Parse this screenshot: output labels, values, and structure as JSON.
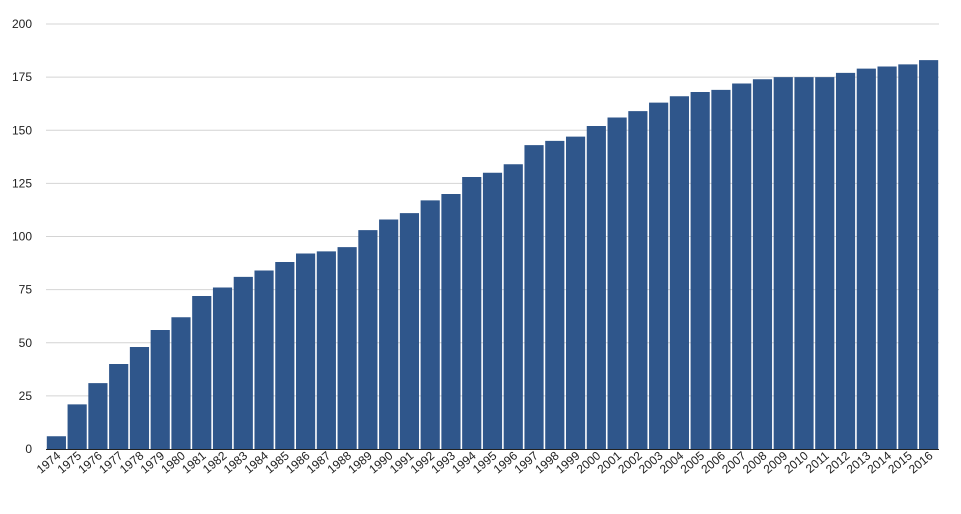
{
  "chart_data": {
    "type": "bar",
    "title": "",
    "xlabel": "",
    "ylabel": "",
    "ylim": [
      0,
      200
    ],
    "yticks": [
      0,
      25,
      50,
      75,
      100,
      125,
      150,
      175,
      200
    ],
    "grid": true,
    "legend": "none",
    "bar_color": "#2f568b",
    "categories": [
      "1974",
      "1975",
      "1976",
      "1977",
      "1978",
      "1979",
      "1980",
      "1981",
      "1982",
      "1983",
      "1984",
      "1985",
      "1986",
      "1987",
      "1988",
      "1989",
      "1990",
      "1991",
      "1992",
      "1993",
      "1994",
      "1995",
      "1996",
      "1997",
      "1998",
      "1999",
      "2000",
      "2001",
      "2002",
      "2003",
      "2004",
      "2005",
      "2006",
      "2007",
      "2008",
      "2009",
      "2010",
      "2011",
      "2012",
      "2013",
      "2014",
      "2015",
      "2016"
    ],
    "values": [
      6,
      21,
      31,
      40,
      48,
      56,
      62,
      72,
      76,
      81,
      84,
      88,
      92,
      93,
      95,
      103,
      108,
      111,
      117,
      120,
      128,
      130,
      134,
      143,
      145,
      147,
      152,
      156,
      159,
      163,
      166,
      168,
      169,
      172,
      174,
      175,
      175,
      175,
      177,
      179,
      180,
      181,
      183
    ]
  }
}
